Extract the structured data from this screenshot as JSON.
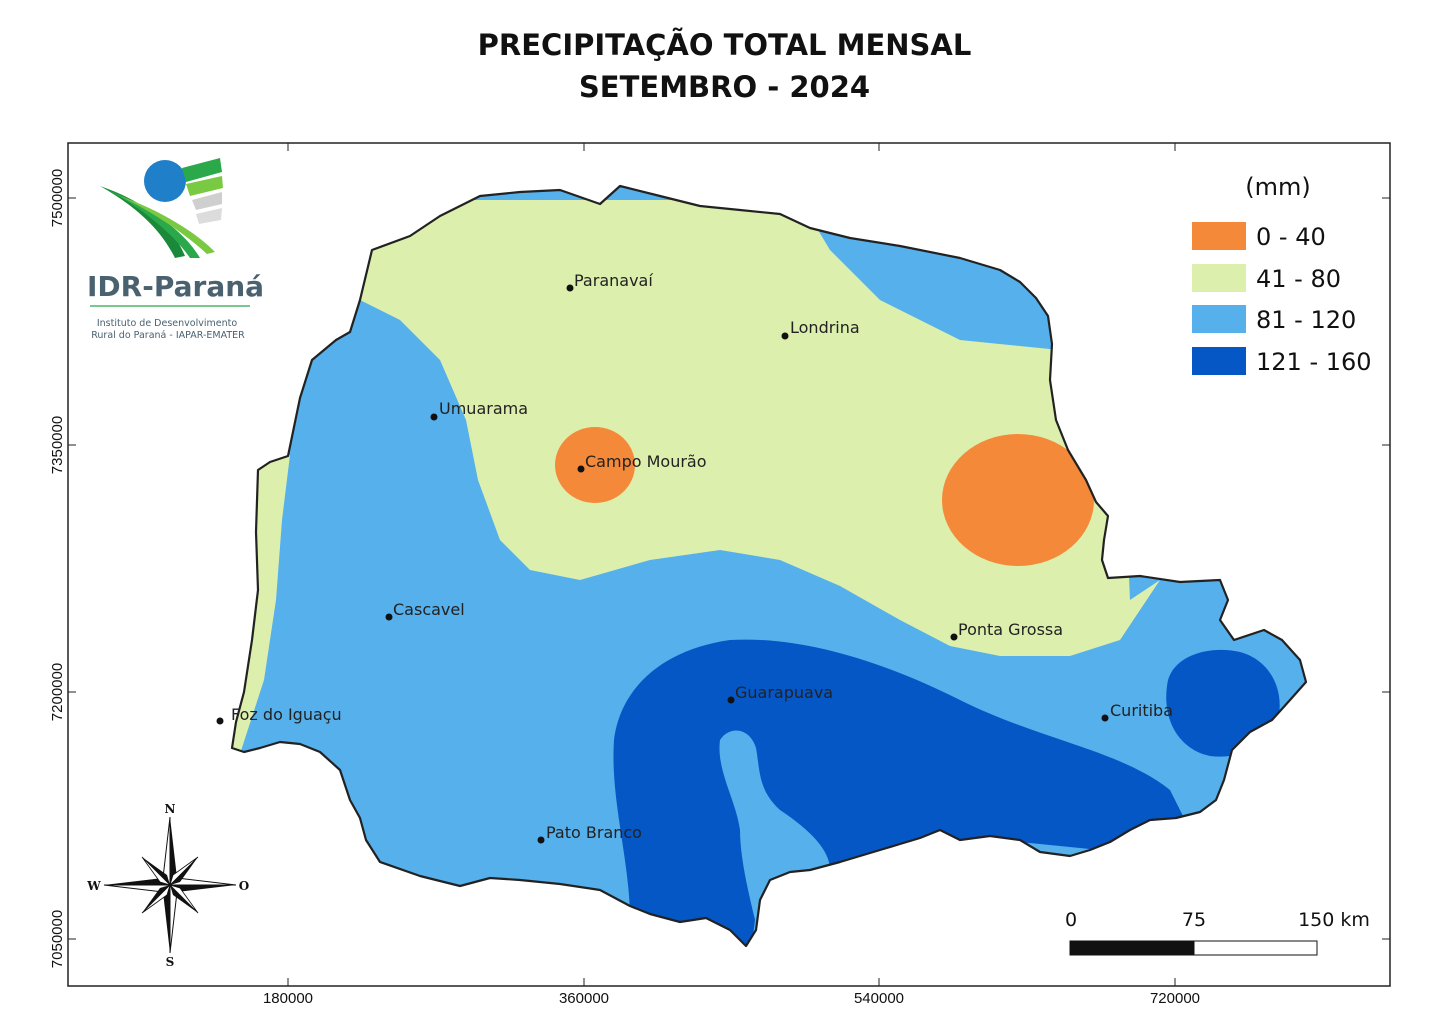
{
  "title": {
    "line1": "PRECIPITAÇÃO TOTAL MENSAL",
    "line2": "SETEMBRO - 2024"
  },
  "logo": {
    "name": "IDR-Paraná",
    "subtitle_line1": "Instituto de Desenvolvimento",
    "subtitle_line2": "Rural do Paraná - IAPAR-EMATER"
  },
  "legend": {
    "unit": "(mm)",
    "classes": [
      {
        "label": "0 - 40",
        "color": "#f5893a"
      },
      {
        "label": "41 - 80",
        "color": "#dcefad"
      },
      {
        "label": "81 - 120",
        "color": "#55b0ec"
      },
      {
        "label": "121 - 160",
        "color": "#0557c6"
      }
    ]
  },
  "cities": [
    {
      "name": "Paranavaí"
    },
    {
      "name": "Londrina"
    },
    {
      "name": "Umuarama"
    },
    {
      "name": "Campo Mourão"
    },
    {
      "name": "Cascavel"
    },
    {
      "name": "Ponta Grossa"
    },
    {
      "name": "Guarapuava"
    },
    {
      "name": "Curitiba"
    },
    {
      "name": "Foz do Iguaçu"
    },
    {
      "name": "Pato Branco"
    }
  ],
  "x_ticks": [
    "180000",
    "360000",
    "540000",
    "720000"
  ],
  "y_ticks": [
    "7500000",
    "7350000",
    "7200000",
    "7050000"
  ],
  "scale_bar": {
    "labels": [
      "0",
      "75",
      "150 km"
    ]
  },
  "compass": {
    "n": "N",
    "s": "S",
    "w": "W",
    "e": "O"
  }
}
